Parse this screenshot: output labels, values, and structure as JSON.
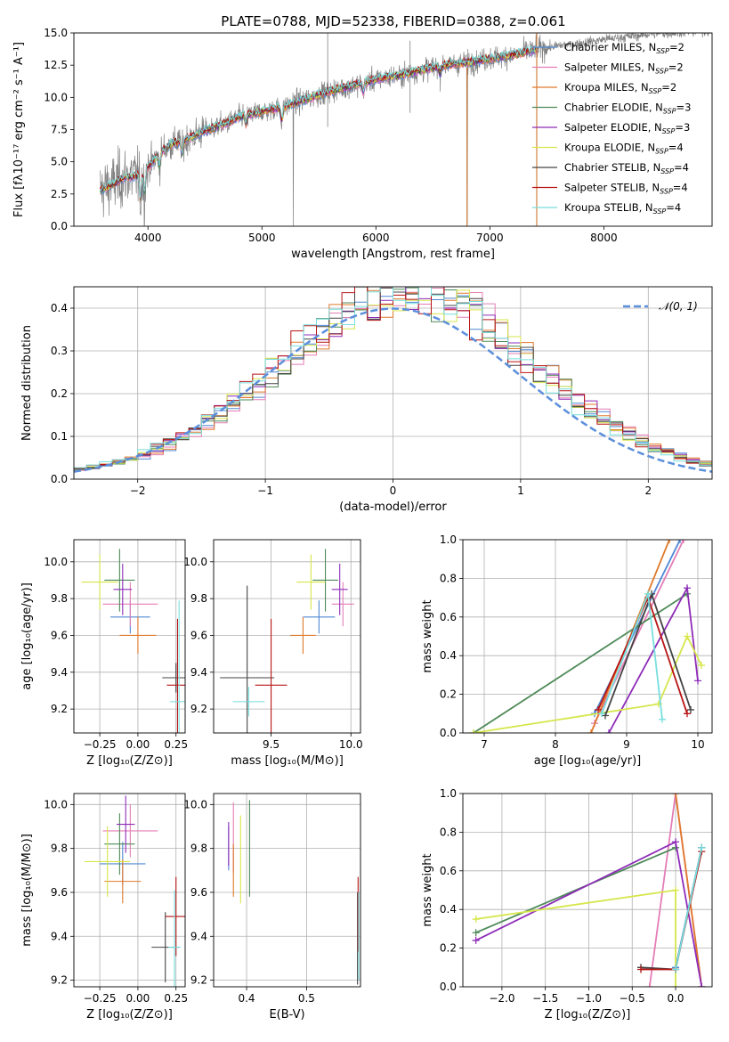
{
  "title": "PLATE=0788, MJD=52338, FIBERID=0388, z=0.061",
  "colors": {
    "Chabrier MILES": "#4f88d4",
    "Salpeter MILES": "#e47db6",
    "Kroupa MILES": "#e0792b",
    "Chabrier ELODIE": "#4e8a58",
    "Salpeter ELODIE": "#8e2cb8",
    "Kroupa ELODIE": "#d6e64a",
    "Chabrier STELIB": "#444444",
    "Salpeter STELIB": "#b81414",
    "Kroupa STELIB": "#77dede",
    "data": "#808080",
    "normal": "#5b8fdc"
  },
  "chart_data": [
    {
      "id": "spectrum",
      "type": "line",
      "title": "PLATE=0788, MJD=52338, FIBERID=0388, z=0.061",
      "xlabel": "wavelength [Angstrom, rest frame]",
      "ylabel": "Flux [fλ10⁻¹⁷ erg cm⁻² s⁻¹ A⁻¹]",
      "xlim": [
        3350,
        8950
      ],
      "ylim": [
        0,
        15
      ],
      "xticks": [
        "4000",
        "5000",
        "6000",
        "7000",
        "8000"
      ],
      "yticks": [
        "0.0",
        "2.5",
        "5.0",
        "7.5",
        "10.0",
        "12.5",
        "15.0"
      ],
      "legend_position": "top-right",
      "legend": [
        {
          "label": "Chabrier MILES, N",
          "sub": "SSP",
          "suffix": "=2"
        },
        {
          "label": "Salpeter MILES, N",
          "sub": "SSP",
          "suffix": "=2"
        },
        {
          "label": "Kroupa MILES, N",
          "sub": "SSP",
          "suffix": "=2"
        },
        {
          "label": "Chabrier ELODIE, N",
          "sub": "SSP",
          "suffix": "=3"
        },
        {
          "label": "Salpeter ELODIE, N",
          "sub": "SSP",
          "suffix": "=3"
        },
        {
          "label": "Kroupa ELODIE, N",
          "sub": "SSP",
          "suffix": "=4"
        },
        {
          "label": "Chabrier STELIB, N",
          "sub": "SSP",
          "suffix": "=4"
        },
        {
          "label": "Salpeter STELIB, N",
          "sub": "SSP",
          "suffix": "=4"
        },
        {
          "label": "Kroupa STELIB, N",
          "sub": "SSP",
          "suffix": "=4"
        }
      ],
      "continuum": {
        "x": [
          3580,
          3700,
          3800,
          3900,
          4000,
          4100,
          4200,
          4300,
          4400,
          4500,
          4600,
          4700,
          4800,
          4900,
          5000,
          5200,
          5400,
          5600,
          5800,
          6000,
          6200,
          6400,
          6600,
          6800,
          7000,
          7200,
          7400,
          7600,
          7800,
          8000,
          8200,
          8400,
          8600,
          8800,
          8950
        ],
        "y": [
          2.8,
          3.3,
          3.8,
          3.9,
          4.6,
          5.6,
          6.4,
          6.6,
          7.0,
          7.4,
          7.7,
          8.0,
          8.5,
          8.7,
          8.9,
          9.3,
          9.9,
          10.5,
          10.9,
          11.4,
          11.7,
          12.1,
          12.5,
          12.7,
          13.0,
          13.3,
          13.7,
          14.0,
          14.2,
          14.5,
          14.7,
          14.9,
          15.0,
          15.1,
          15.2
        ]
      },
      "sky_spikes": [
        {
          "x": 5577,
          "y": [
            7.7,
            15.0
          ]
        },
        {
          "x": 6300,
          "y": [
            8.8,
            14.4
          ]
        },
        {
          "x": 7410,
          "y": [
            0.0,
            15.0
          ]
        }
      ],
      "telluric_dips": [
        {
          "x": 6800,
          "y": [
            12.6,
            0.0
          ]
        },
        {
          "x": 5275,
          "y": [
            9.0,
            0.0
          ]
        }
      ]
    },
    {
      "id": "residuals",
      "type": "histogram",
      "xlabel": "(data-model)/error",
      "ylabel": "Normed distribution",
      "xlim": [
        -2.5,
        2.5
      ],
      "ylim": [
        0,
        0.45
      ],
      "xticks": [
        "−2",
        "−1",
        "0",
        "1",
        "2"
      ],
      "yticks": [
        "0.0",
        "0.1",
        "0.2",
        "0.3",
        "0.4"
      ],
      "legend_position": "top-right",
      "reference_label": "𝒩(0, 1)",
      "reference_curve": "normal(0,1)",
      "bins": 50
    },
    {
      "id": "age_vs_Z",
      "type": "scatter",
      "xlabel": "Z [log₁₀(Z/Z⊙)]",
      "ylabel": "age  [log₁₀(age/yr)]",
      "xlim": [
        -0.42,
        0.31
      ],
      "ylim": [
        9.07,
        10.12
      ],
      "xticks": [
        "−0.25",
        "0.00",
        "0.25"
      ],
      "yticks": [
        "9.2",
        "9.4",
        "9.6",
        "9.8",
        "10.0"
      ],
      "points": [
        {
          "model": "Chabrier MILES",
          "x": -0.05,
          "y": 9.7,
          "xerr": 0.13,
          "yerr": 0.09
        },
        {
          "model": "Salpeter MILES",
          "x": -0.05,
          "y": 9.77,
          "xerr": 0.18,
          "yerr": 0.12
        },
        {
          "model": "Kroupa MILES",
          "x": 0.0,
          "y": 9.6,
          "xerr": 0.12,
          "yerr": 0.1
        },
        {
          "model": "Chabrier ELODIE",
          "x": -0.12,
          "y": 9.9,
          "xerr": 0.1,
          "yerr": 0.17
        },
        {
          "model": "Salpeter ELODIE",
          "x": -0.1,
          "y": 9.85,
          "xerr": 0.06,
          "yerr": 0.14
        },
        {
          "model": "Kroupa ELODIE",
          "x": -0.25,
          "y": 9.89,
          "xerr": 0.12,
          "yerr": 0.15
        },
        {
          "model": "Chabrier STELIB",
          "x": 0.25,
          "y": 9.37,
          "xerr": 0.09,
          "yerr": 0.08
        },
        {
          "model": "Salpeter STELIB",
          "x": 0.26,
          "y": 9.33,
          "xerr": 0.07,
          "yerr": 0.36
        },
        {
          "model": "Kroupa STELIB",
          "x": 0.27,
          "y": 9.24,
          "xerr": 0.06,
          "yerr": 0.55
        }
      ]
    },
    {
      "id": "age_vs_mass",
      "type": "scatter",
      "xlabel": "mass [log₁₀(M/M⊙)]",
      "ylabel": "",
      "xlim": [
        9.14,
        10.06
      ],
      "ylim": [
        9.07,
        10.12
      ],
      "xticks": [
        "9.5",
        "10.0"
      ],
      "yticks": [
        "9.2",
        "9.4",
        "9.6",
        "9.8",
        "10.0"
      ],
      "points": [
        {
          "model": "Chabrier MILES",
          "x": 9.8,
          "y": 9.7,
          "xerr": 0.1,
          "yerr": 0.09
        },
        {
          "model": "Salpeter MILES",
          "x": 9.95,
          "y": 9.77,
          "xerr": 0.07,
          "yerr": 0.12
        },
        {
          "model": "Kroupa MILES",
          "x": 9.7,
          "y": 9.6,
          "xerr": 0.08,
          "yerr": 0.1
        },
        {
          "model": "Chabrier ELODIE",
          "x": 9.84,
          "y": 9.9,
          "xerr": 0.08,
          "yerr": 0.17
        },
        {
          "model": "Salpeter ELODIE",
          "x": 9.93,
          "y": 9.85,
          "xerr": 0.05,
          "yerr": 0.14
        },
        {
          "model": "Kroupa ELODIE",
          "x": 9.75,
          "y": 9.89,
          "xerr": 0.09,
          "yerr": 0.15
        },
        {
          "model": "Chabrier STELIB",
          "x": 9.35,
          "y": 9.37,
          "xerr": 0.17,
          "yerr": 0.5
        },
        {
          "model": "Salpeter STELIB",
          "x": 9.5,
          "y": 9.33,
          "xerr": 0.1,
          "yerr": 0.36
        },
        {
          "model": "Kroupa STELIB",
          "x": 9.36,
          "y": 9.24,
          "xerr": 0.1,
          "yerr": 0.08
        }
      ]
    },
    {
      "id": "weight_vs_age",
      "type": "line",
      "xlabel": "age  [log₁₀(age/yr)]",
      "ylabel": "mass weight",
      "xlim": [
        6.7,
        10.2
      ],
      "ylim": [
        0,
        1
      ],
      "xticks": [
        "7",
        "8",
        "9",
        "10"
      ],
      "yticks": [
        "0.0",
        "0.2",
        "0.4",
        "0.6",
        "0.8",
        "1.0"
      ],
      "series": [
        {
          "model": "Chabrier MILES",
          "x": [
            8.55,
            9.75
          ],
          "y": [
            0.1,
            1.0
          ]
        },
        {
          "model": "Salpeter MILES",
          "x": [
            8.55,
            9.8
          ],
          "y": [
            0.05,
            1.0
          ]
        },
        {
          "model": "Kroupa MILES",
          "x": [
            8.5,
            9.6
          ],
          "y": [
            0.0,
            1.0
          ]
        },
        {
          "model": "Chabrier ELODIE",
          "x": [
            6.85,
            9.85
          ],
          "y": [
            0.0,
            0.72
          ]
        },
        {
          "model": "Salpeter ELODIE",
          "x": [
            8.75,
            9.85,
            10.0
          ],
          "y": [
            0.0,
            0.75,
            0.27
          ]
        },
        {
          "model": "Kroupa ELODIE",
          "x": [
            6.85,
            9.45,
            9.85,
            10.05
          ],
          "y": [
            0.0,
            0.15,
            0.5,
            0.35
          ]
        },
        {
          "model": "Chabrier STELIB",
          "x": [
            8.7,
            9.35,
            9.9
          ],
          "y": [
            0.09,
            0.72,
            0.12
          ]
        },
        {
          "model": "Salpeter STELIB",
          "x": [
            8.6,
            9.3,
            9.85
          ],
          "y": [
            0.12,
            0.7,
            0.1
          ]
        },
        {
          "model": "Kroupa STELIB",
          "x": [
            8.65,
            9.3,
            9.5
          ],
          "y": [
            0.1,
            0.72,
            0.07
          ]
        }
      ]
    },
    {
      "id": "mass_vs_Z",
      "type": "scatter",
      "xlabel": "Z [log₁₀(Z/Z⊙)]",
      "ylabel": "mass [log₁₀(M/M⊙)]",
      "xlim": [
        -0.42,
        0.31
      ],
      "ylim": [
        9.17,
        10.05
      ],
      "xticks": [
        "−0.25",
        "0.00",
        "0.25"
      ],
      "yticks": [
        "9.2",
        "9.4",
        "9.6",
        "9.8",
        "10.0"
      ],
      "points": [
        {
          "model": "Chabrier MILES",
          "x": -0.1,
          "y": 9.73,
          "xerr": 0.15,
          "yerr": 0.1
        },
        {
          "model": "Salpeter MILES",
          "x": -0.05,
          "y": 9.88,
          "xerr": 0.18,
          "yerr": 0.12
        },
        {
          "model": "Kroupa MILES",
          "x": -0.1,
          "y": 9.65,
          "xerr": 0.12,
          "yerr": 0.1
        },
        {
          "model": "Chabrier ELODIE",
          "x": -0.12,
          "y": 9.82,
          "xerr": 0.1,
          "yerr": 0.14
        },
        {
          "model": "Salpeter ELODIE",
          "x": -0.08,
          "y": 9.91,
          "xerr": 0.06,
          "yerr": 0.13
        },
        {
          "model": "Kroupa ELODIE",
          "x": -0.2,
          "y": 9.74,
          "xerr": 0.15,
          "yerr": 0.16
        },
        {
          "model": "Chabrier STELIB",
          "x": 0.18,
          "y": 9.35,
          "xerr": 0.09,
          "yerr": 0.16
        },
        {
          "model": "Salpeter STELIB",
          "x": 0.25,
          "y": 9.49,
          "xerr": 0.07,
          "yerr": 0.18
        },
        {
          "model": "Kroupa STELIB",
          "x": 0.24,
          "y": 9.35,
          "xerr": 0.04,
          "yerr": 0.26
        }
      ]
    },
    {
      "id": "mass_vs_ebv",
      "type": "scatter",
      "xlabel": "E(B-V)",
      "ylabel": "",
      "xlim": [
        0.345,
        0.59
      ],
      "ylim": [
        9.17,
        10.05
      ],
      "xticks": [
        "0.4",
        "0.5"
      ],
      "yticks": [
        "9.2",
        "9.4",
        "9.6",
        "9.8",
        "10.0"
      ],
      "points": [
        {
          "model": "Chabrier MILES",
          "x": 0.37,
          "y": 9.8,
          "xerr": 0.0,
          "yerr": 0.1
        },
        {
          "model": "Salpeter MILES",
          "x": 0.378,
          "y": 9.85,
          "xerr": 0.0,
          "yerr": 0.16
        },
        {
          "model": "Kroupa MILES",
          "x": 0.378,
          "y": 9.7,
          "xerr": 0.0,
          "yerr": 0.12
        },
        {
          "model": "Chabrier ELODIE",
          "x": 0.405,
          "y": 9.8,
          "xerr": 0.0,
          "yerr": 0.22
        },
        {
          "model": "Salpeter ELODIE",
          "x": 0.37,
          "y": 9.82,
          "xerr": 0.0,
          "yerr": 0.1
        },
        {
          "model": "Kroupa ELODIE",
          "x": 0.39,
          "y": 9.75,
          "xerr": 0.0,
          "yerr": 0.2
        },
        {
          "model": "Chabrier STELIB",
          "x": 0.585,
          "y": 9.39,
          "xerr": 0.0,
          "yerr": 0.21
        },
        {
          "model": "Salpeter STELIB",
          "x": 0.586,
          "y": 9.5,
          "xerr": 0.0,
          "yerr": 0.17
        },
        {
          "model": "Kroupa STELIB",
          "x": 0.587,
          "y": 9.4,
          "xerr": 0.0,
          "yerr": 0.2
        }
      ]
    },
    {
      "id": "weight_vs_Z",
      "type": "line",
      "xlabel": "Z [log₁₀(Z/Z⊙)]",
      "ylabel": "mass weight",
      "xlim": [
        -2.45,
        0.42
      ],
      "ylim": [
        0,
        1
      ],
      "xticks": [
        "−2.0",
        "−1.5",
        "−1.0",
        "−0.5",
        "0.0"
      ],
      "yticks": [
        "0.0",
        "0.2",
        "0.4",
        "0.6",
        "0.8",
        "1.0"
      ],
      "series": [
        {
          "model": "Chabrier MILES",
          "x": [
            0.0,
            0.3
          ],
          "y": [
            0.1,
            0.72
          ]
        },
        {
          "model": "Salpeter MILES",
          "x": [
            -0.3,
            0.0,
            0.3
          ],
          "y": [
            0.0,
            1.0,
            0.0
          ]
        },
        {
          "model": "Kroupa MILES",
          "x": [
            0.0,
            0.3
          ],
          "y": [
            1.0,
            0.0
          ]
        },
        {
          "model": "Chabrier ELODIE",
          "x": [
            -2.3,
            0.0
          ],
          "y": [
            0.28,
            0.72
          ]
        },
        {
          "model": "Salpeter ELODIE",
          "x": [
            -2.3,
            0.0,
            0.3
          ],
          "y": [
            0.24,
            0.75,
            0.0
          ]
        },
        {
          "model": "Kroupa ELODIE",
          "x": [
            -2.3,
            0.0,
            0.0
          ],
          "y": [
            0.35,
            0.5,
            0.0
          ]
        },
        {
          "model": "Chabrier STELIB",
          "x": [
            -0.4,
            0.0,
            0.3
          ],
          "y": [
            0.1,
            0.09,
            0.72
          ]
        },
        {
          "model": "Salpeter STELIB",
          "x": [
            -0.4,
            0.0,
            0.3
          ],
          "y": [
            0.09,
            0.09,
            0.7
          ]
        },
        {
          "model": "Kroupa STELIB",
          "x": [
            0.0,
            0.3
          ],
          "y": [
            0.09,
            0.72
          ]
        }
      ]
    }
  ]
}
